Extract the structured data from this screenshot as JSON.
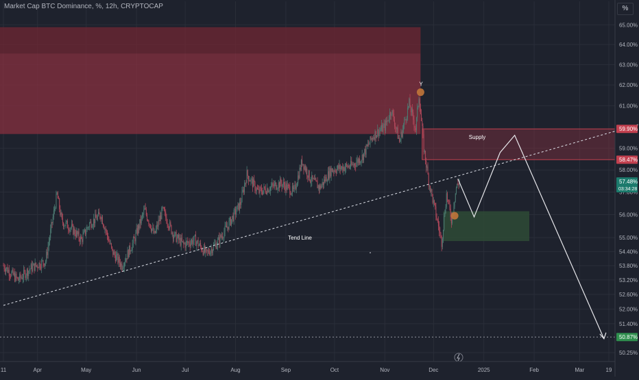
{
  "header": {
    "title": "Market Cap BTC Dominance, %, 12h, CRYPTOCAP",
    "scale_button": "%"
  },
  "colors": {
    "background": "#1e222d",
    "grid": "#2a2e39",
    "up_candle": "#4c7a72",
    "down_candle": "#b0485a",
    "supply_zone": "#8b3140",
    "demand_zone": "#2e4a36",
    "marker": "#c1763a",
    "price_up": "#26a69a",
    "price_down": "#f23645",
    "axis_text": "#b2b5be"
  },
  "chart_data": {
    "type": "candlestick",
    "title": "Market Cap BTC Dominance, %, 12h, CRYPTOCAP",
    "y_scale": "log",
    "ylim": [
      49.9,
      65.5
    ],
    "y_ticks": [
      "65.00%",
      "64.00%",
      "63.00%",
      "62.00%",
      "61.00%",
      "59.00%",
      "58.00%",
      "57.00%",
      "56.00%",
      "55.00%",
      "54.40%",
      "53.80%",
      "53.20%",
      "52.60%",
      "52.00%",
      "51.40%",
      "50.25%"
    ],
    "x_ticks": [
      "11",
      "Apr",
      "May",
      "Jun",
      "Jul",
      "Aug",
      "Sep",
      "Oct",
      "Nov",
      "Dec",
      "2025",
      "Feb",
      "Mar",
      "19"
    ],
    "price_path": [
      [
        "2024-03-11",
        53.8
      ],
      [
        "2024-03-20",
        53.2
      ],
      [
        "2024-03-28",
        53.7
      ],
      [
        "2024-04-06",
        54.0
      ],
      [
        "2024-04-13",
        56.9
      ],
      [
        "2024-04-16",
        55.7
      ],
      [
        "2024-04-22",
        55.4
      ],
      [
        "2024-04-28",
        54.9
      ],
      [
        "2024-05-03",
        55.6
      ],
      [
        "2024-05-10",
        56.0
      ],
      [
        "2024-05-17",
        54.4
      ],
      [
        "2024-05-23",
        53.8
      ],
      [
        "2024-05-30",
        54.8
      ],
      [
        "2024-06-06",
        56.2
      ],
      [
        "2024-06-12",
        55.1
      ],
      [
        "2024-06-17",
        56.2
      ],
      [
        "2024-06-24",
        55.1
      ],
      [
        "2024-06-30",
        54.7
      ],
      [
        "2024-07-07",
        54.9
      ],
      [
        "2024-07-14",
        54.3
      ],
      [
        "2024-07-21",
        54.8
      ],
      [
        "2024-07-28",
        55.6
      ],
      [
        "2024-08-04",
        56.5
      ],
      [
        "2024-08-08",
        57.8
      ],
      [
        "2024-08-15",
        57.0
      ],
      [
        "2024-08-22",
        57.2
      ],
      [
        "2024-08-29",
        57.4
      ],
      [
        "2024-09-06",
        57.0
      ],
      [
        "2024-09-11",
        58.4
      ],
      [
        "2024-09-16",
        57.6
      ],
      [
        "2024-09-22",
        57.2
      ],
      [
        "2024-09-29",
        58.0
      ],
      [
        "2024-10-05",
        58.1
      ],
      [
        "2024-10-12",
        58.2
      ],
      [
        "2024-10-18",
        58.6
      ],
      [
        "2024-10-25",
        59.6
      ],
      [
        "2024-11-01",
        60.0
      ],
      [
        "2024-11-05",
        60.8
      ],
      [
        "2024-11-10",
        59.3
      ],
      [
        "2024-11-16",
        61.1
      ],
      [
        "2024-11-20",
        59.9
      ],
      [
        "2024-11-22",
        61.5
      ],
      [
        "2024-11-25",
        59.0
      ],
      [
        "2024-11-28",
        57.5
      ],
      [
        "2024-12-01",
        56.5
      ],
      [
        "2024-12-04",
        55.5
      ],
      [
        "2024-12-06",
        54.8
      ],
      [
        "2024-12-09",
        56.9
      ],
      [
        "2024-12-12",
        55.8
      ],
      [
        "2024-12-15",
        57.2
      ],
      [
        "2024-12-17",
        57.48
      ]
    ],
    "last_value": "57.48%",
    "countdown": "03:34:28",
    "supply_zone_label": "Supply",
    "supply_zone": {
      "from": "2024-11-24",
      "to": "2025-04-06",
      "high": 59.9,
      "low": 58.47
    },
    "supply_zone_top_label": "59.90%",
    "supply_zone_bottom_label": "58.47%",
    "upper_zone": {
      "from": "2024-02-01",
      "to": "2024-11-23",
      "high": 64.88,
      "low": 59.66
    },
    "demand_zone": {
      "from": "2024-12-07",
      "to": "2025-01-29",
      "high": 56.15,
      "low": 54.85
    },
    "trend_line_label": "Tend Line",
    "trend_line": {
      "from": [
        "2024-03-11",
        52.15
      ],
      "to": [
        "2025-04-06",
        60.1
      ]
    },
    "projection_path": [
      [
        "2024-12-16",
        57.6
      ],
      [
        "2024-12-26",
        55.9
      ],
      [
        "2025-01-11",
        58.8
      ],
      [
        "2025-01-20",
        59.6
      ],
      [
        "2025-03-16",
        50.8
      ]
    ],
    "target_level": 50.87,
    "target_label": "50.87%",
    "peak_marker_label": "Y",
    "markers": [
      [
        "2024-11-23",
        61.65
      ],
      [
        "2024-12-14",
        55.95
      ]
    ]
  }
}
